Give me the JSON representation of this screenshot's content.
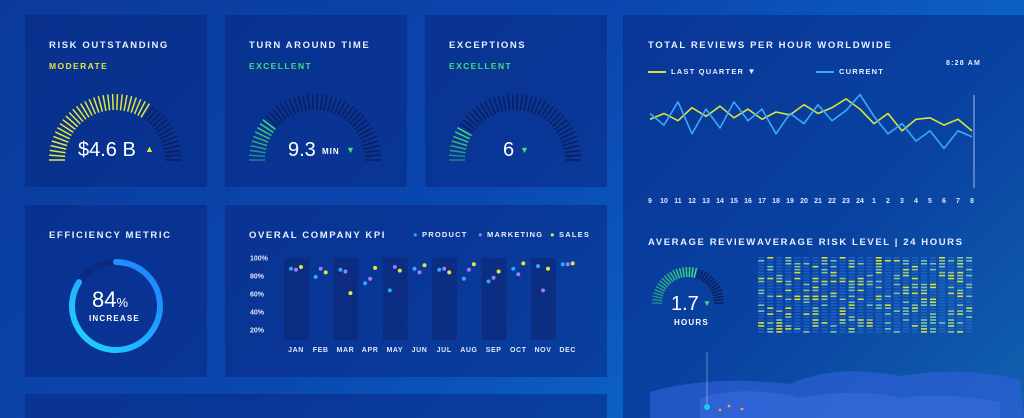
{
  "colors": {
    "yellow": "#e2e63a",
    "green": "#3ee07a",
    "blue": "#2fa6ff",
    "purple": "#9a7cff",
    "cyan": "#19c8ff",
    "track": "#0c1e5c"
  },
  "risk": {
    "title": "RISK OUTSTANDING",
    "status": "MODERATE",
    "value": "$4.6 B",
    "fill": 0.68,
    "trend": "up"
  },
  "tat": {
    "title": "TURN AROUND TIME",
    "status": "EXCELLENT",
    "value": "9.3",
    "unit": "MIN",
    "fill": 0.22,
    "trend": "down"
  },
  "exceptions": {
    "title": "EXCEPTIONS",
    "status": "EXCELLENT",
    "value": "6",
    "fill": 0.18,
    "trend": "down"
  },
  "efficiency": {
    "title": "EFFICIENCY METRIC",
    "value": "84",
    "pct": "%",
    "label": "INCREASE",
    "fill": 0.84
  },
  "kpi": {
    "title": "OVERAL COMPANY KPI",
    "legend": [
      {
        "label": "PRODUCT",
        "color": "#2fa6ff"
      },
      {
        "label": "MARKETING",
        "color": "#9a7cff"
      },
      {
        "label": "SALES",
        "color": "#e2e63a"
      }
    ],
    "yticks": [
      "100%",
      "80%",
      "60%",
      "40%",
      "20%"
    ]
  },
  "chart_data": [
    {
      "type": "scatter",
      "title": "OVERAL COMPANY KPI",
      "categories": [
        "JAN",
        "FEB",
        "MAR",
        "APR",
        "MAY",
        "JUN",
        "JUL",
        "AUG",
        "SEP",
        "OCT",
        "NOV",
        "DEC"
      ],
      "ylim": [
        20,
        100
      ],
      "yticks": [
        "100%",
        "80%",
        "60%",
        "40%",
        "20%"
      ],
      "series": [
        {
          "name": "PRODUCT",
          "color": "#2fa6ff",
          "values": [
            88,
            79,
            87,
            72,
            64,
            88,
            87,
            77,
            74,
            88,
            91,
            93
          ]
        },
        {
          "name": "MARKETING",
          "color": "#9a7cff",
          "values": [
            87,
            88,
            85,
            77,
            90,
            84,
            88,
            87,
            78,
            82,
            64,
            93
          ]
        },
        {
          "name": "SALES",
          "color": "#e2e63a",
          "values": [
            90,
            84,
            61,
            89,
            86,
            92,
            84,
            93,
            85,
            94,
            88,
            94
          ]
        }
      ]
    },
    {
      "type": "line",
      "title": "TOTAL REVIEWS PER HOUR WORLDWIDE",
      "categories": [
        "9",
        "10",
        "11",
        "12",
        "13",
        "14",
        "15",
        "16",
        "17",
        "18",
        "19",
        "20",
        "21",
        "22",
        "23",
        "24",
        "1",
        "2",
        "3",
        "4",
        "5",
        "6",
        "7",
        "8"
      ],
      "series": [
        {
          "name": "LAST QUARTER",
          "color": "#d8e43a",
          "values": [
            48,
            52,
            47,
            56,
            50,
            57,
            49,
            55,
            48,
            53,
            51,
            58,
            52,
            56,
            62,
            55,
            45,
            52,
            40,
            48,
            49,
            44,
            48,
            40
          ]
        },
        {
          "name": "CURRENT",
          "color": "#3aa8ff",
          "values": [
            52,
            44,
            60,
            38,
            55,
            42,
            60,
            47,
            55,
            38,
            52,
            45,
            58,
            47,
            54,
            65,
            50,
            38,
            45,
            33,
            40,
            28,
            40,
            36
          ]
        }
      ]
    }
  ],
  "reviews": {
    "title": "TOTAL REVIEWS PER HOUR WORLDWIDE",
    "legend_a": "LAST QUARTER",
    "legend_b": "CURRENT",
    "time": "8:28 AM",
    "hours": [
      "9",
      "10",
      "11",
      "12",
      "13",
      "14",
      "15",
      "16",
      "17",
      "18",
      "19",
      "20",
      "21",
      "22",
      "23",
      "24",
      "1",
      "2",
      "3",
      "4",
      "5",
      "6",
      "7",
      "8"
    ]
  },
  "avg_review": {
    "title": "AVERAGE REVIEW",
    "value": "1.7",
    "unit": "HOURS",
    "fill": 0.6,
    "trend": "down"
  },
  "avg_risk": {
    "title": "AVERAGE RISK LEVEL  |  24 HOURS"
  }
}
